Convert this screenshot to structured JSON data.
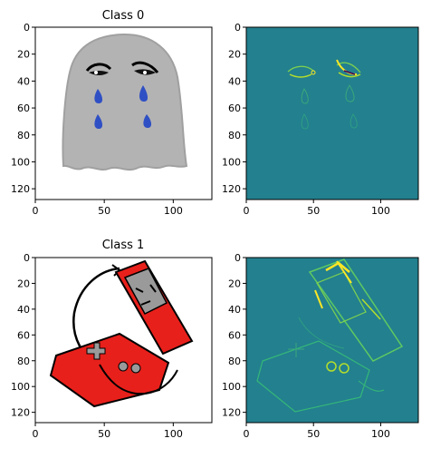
{
  "chart_data": [
    {
      "type": "image",
      "title": "Class 0",
      "content": "sad-ghost-drawing",
      "xlim": [
        0,
        128
      ],
      "ylim": [
        128,
        0
      ],
      "xticks": [
        0,
        50,
        100
      ],
      "yticks": [
        0,
        20,
        40,
        60,
        80,
        100,
        120
      ]
    },
    {
      "type": "heatmap",
      "title": "",
      "content": "ghost-saliency-map",
      "colormap": "viridis",
      "xlim": [
        0,
        128
      ],
      "ylim": [
        128,
        0
      ],
      "xticks": [
        0,
        50,
        100
      ],
      "yticks": [
        0,
        20,
        40,
        60,
        80,
        100,
        120
      ]
    },
    {
      "type": "image",
      "title": "Class 1",
      "content": "game-console-drawing",
      "xlim": [
        0,
        128
      ],
      "ylim": [
        128,
        0
      ],
      "xticks": [
        0,
        50,
        100
      ],
      "yticks": [
        0,
        20,
        40,
        60,
        80,
        100,
        120
      ]
    },
    {
      "type": "heatmap",
      "title": "",
      "content": "console-saliency-map",
      "colormap": "viridis",
      "xlim": [
        0,
        128
      ],
      "ylim": [
        128,
        0
      ],
      "xticks": [
        0,
        50,
        100
      ],
      "yticks": [
        0,
        20,
        40,
        60,
        80,
        100,
        120
      ]
    }
  ],
  "colors": {
    "heatmap_bg": "#23808e",
    "heatmap_highlight": "#fde725",
    "heatmap_dark": "#440154",
    "ghost_body": "#b3b3b3",
    "tears": "#2f4fc4",
    "console_red": "#e8201b"
  }
}
